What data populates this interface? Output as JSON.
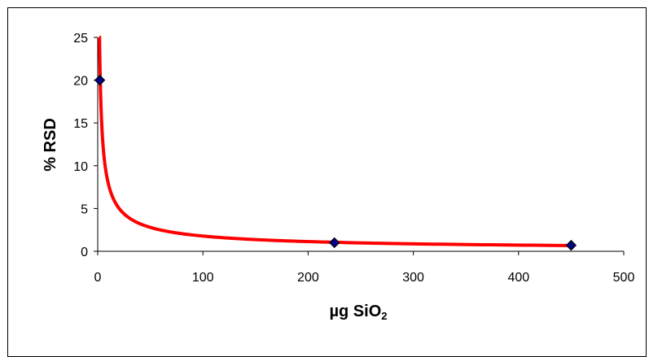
{
  "chart_data": {
    "type": "scatter",
    "title": "",
    "xlabel": "µg SiO",
    "xlabel_subscript": "2",
    "ylabel": "% RSD",
    "xlim": [
      0,
      500
    ],
    "ylim": [
      0,
      25
    ],
    "xticks": [
      "0",
      "100",
      "200",
      "300",
      "400",
      "500"
    ],
    "yticks": [
      "0",
      "5",
      "10",
      "15",
      "20",
      "25"
    ],
    "grid": false,
    "legend": "none",
    "series": [
      {
        "points": [
          {
            "x": 2,
            "y": 20
          },
          {
            "x": 225,
            "y": 1
          },
          {
            "x": 450,
            "y": 0.7
          }
        ],
        "marker_color": "#000080",
        "marker": "diamond"
      }
    ],
    "trendline": {
      "type": "power",
      "equation_hidden": true,
      "color": "#ff0000",
      "coef_a": 35.5,
      "exp_b": -0.65
    }
  }
}
